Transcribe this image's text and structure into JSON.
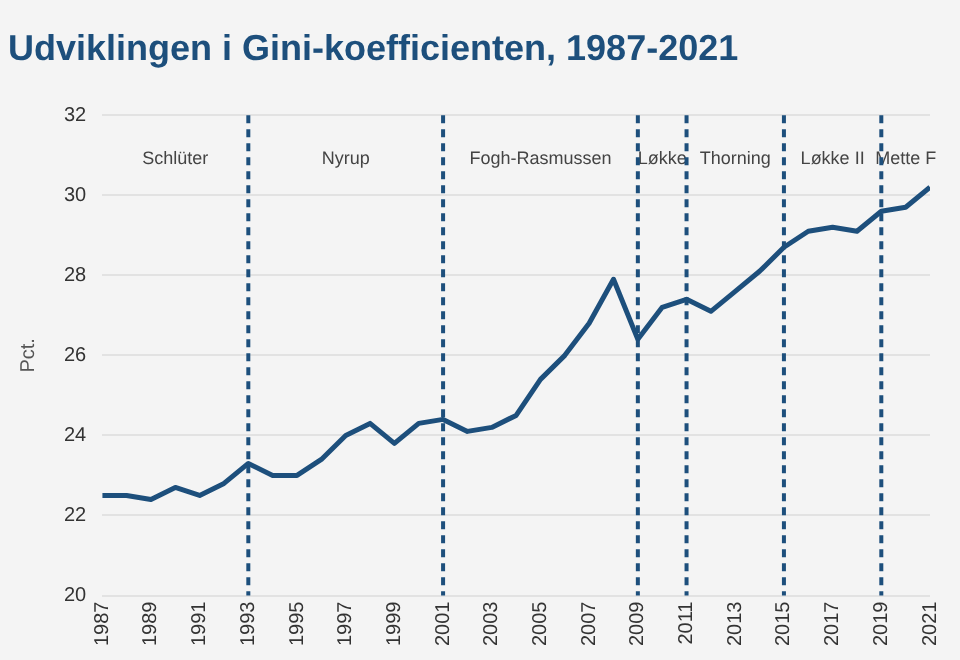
{
  "chart_data": {
    "type": "line",
    "title": "Udviklingen i Gini-koefficienten, 1987-2021",
    "ylabel": "Pct.",
    "x": [
      1987,
      1988,
      1989,
      1990,
      1991,
      1992,
      1993,
      1994,
      1995,
      1996,
      1997,
      1998,
      1999,
      2000,
      2001,
      2002,
      2003,
      2004,
      2005,
      2006,
      2007,
      2008,
      2009,
      2010,
      2011,
      2012,
      2013,
      2014,
      2015,
      2016,
      2017,
      2018,
      2019,
      2020,
      2021
    ],
    "series": [
      {
        "color": "#1d4f7c",
        "values": [
          22.5,
          22.5,
          22.4,
          22.7,
          22.5,
          22.8,
          23.3,
          23.0,
          23.0,
          23.4,
          24.0,
          24.3,
          23.8,
          24.3,
          24.4,
          24.1,
          24.2,
          24.5,
          25.4,
          26.0,
          26.8,
          27.9,
          26.4,
          27.2,
          27.4,
          27.1,
          27.6,
          28.1,
          28.7,
          29.1,
          29.2,
          29.1,
          29.6,
          29.7,
          30.2
        ]
      }
    ],
    "xlim": [
      1987,
      2021
    ],
    "xticks": [
      1987,
      1989,
      1991,
      1993,
      1995,
      1997,
      1999,
      2001,
      2003,
      2005,
      2007,
      2009,
      2011,
      2013,
      2015,
      2017,
      2019,
      2021
    ],
    "ylim": [
      20,
      32
    ],
    "yticks": [
      20,
      22,
      24,
      26,
      28,
      30,
      32
    ],
    "grid": "y",
    "legend": false,
    "marker": "none",
    "line_style": "solid",
    "ref_lines": [
      {
        "axis": "x",
        "value": 1993,
        "color": "#1d4f7c",
        "line_style": "dashed"
      },
      {
        "axis": "x",
        "value": 2001,
        "color": "#1d4f7c",
        "line_style": "dashed"
      },
      {
        "axis": "x",
        "value": 2009,
        "color": "#1d4f7c",
        "line_style": "dashed"
      },
      {
        "axis": "x",
        "value": 2011,
        "color": "#1d4f7c",
        "line_style": "dashed"
      },
      {
        "axis": "x",
        "value": 2015,
        "color": "#1d4f7c",
        "line_style": "dashed"
      },
      {
        "axis": "x",
        "value": 2019,
        "color": "#1d4f7c",
        "line_style": "dashed"
      }
    ],
    "annotations": [
      "Schlüter",
      "Nyrup",
      "Fogh-Rasmussen",
      "Løkke",
      "Thorning",
      "Løkke II",
      "Mette F"
    ]
  }
}
